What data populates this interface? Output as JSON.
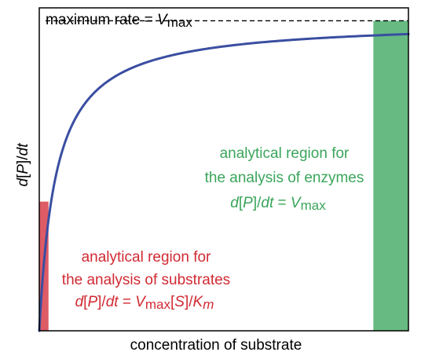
{
  "chart_data": {
    "type": "line",
    "xlabel": "concentration of substrate",
    "ylabel": {
      "pre": "d[P]/",
      "it": "dt"
    },
    "xlim": [
      0,
      1
    ],
    "ylim": [
      0,
      1
    ],
    "vmax": 0.96,
    "km": 0.045,
    "grid": false,
    "maximum_rate_label": {
      "pre": "maximum rate = ",
      "v": "V",
      "sub": "max"
    },
    "series": [
      {
        "kind": "michaelis-menten curve",
        "color": "#3a4ea1"
      }
    ],
    "regions": [
      {
        "name": "substrates",
        "x_range": [
          0,
          0.025
        ],
        "y_top": 0.4,
        "color": "#dd5b65",
        "text_line1": "analytical region for",
        "text_line2": "the analysis of substrates",
        "formula": "d[P]/dt = Vmax[S]/Km"
      },
      {
        "name": "enzymes",
        "x_range": [
          0.905,
          1
        ],
        "y_top": 0.96,
        "color": "#67bb82",
        "text_line1": "analytical region for",
        "text_line2": "the analysis of enzymes",
        "formula": "d[P]/dt = Vmax"
      }
    ]
  }
}
